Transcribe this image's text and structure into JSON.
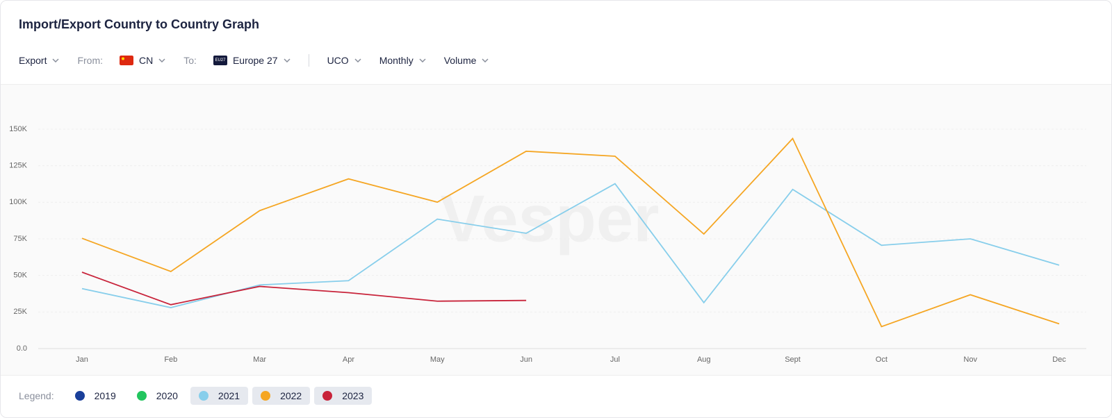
{
  "header": {
    "title": "Import/Export Country to Country Graph"
  },
  "filters": {
    "direction": "Export",
    "from_label": "From:",
    "from": "CN",
    "to_label": "To:",
    "to_badge": "EU27",
    "to": "Europe 27",
    "product": "UCO",
    "period": "Monthly",
    "measure": "Volume"
  },
  "watermark": "Vesper",
  "legend_label": "Legend:",
  "chart_data": {
    "type": "line",
    "categories": [
      "Jan",
      "Feb",
      "Mar",
      "Apr",
      "May",
      "Jun",
      "Jul",
      "Aug",
      "Sept",
      "Oct",
      "Nov",
      "Dec"
    ],
    "series": [
      {
        "name": "2019",
        "color": "#1a3f9a",
        "selected": false,
        "values": [
          null,
          null,
          null,
          null,
          null,
          null,
          null,
          null,
          null,
          null,
          null,
          null
        ]
      },
      {
        "name": "2020",
        "color": "#22c55e",
        "selected": false,
        "values": [
          null,
          null,
          null,
          null,
          null,
          null,
          null,
          null,
          null,
          null,
          null,
          null
        ]
      },
      {
        "name": "2021",
        "color": "#87ceeb",
        "selected": true,
        "values": [
          41000,
          28000,
          43500,
          46400,
          88500,
          78800,
          112700,
          31400,
          108800,
          70600,
          75000,
          57000
        ]
      },
      {
        "name": "2022",
        "color": "#f5a623",
        "selected": true,
        "values": [
          75400,
          52700,
          94300,
          116000,
          100100,
          134900,
          131500,
          78300,
          143600,
          15000,
          36800,
          16900
        ]
      },
      {
        "name": "2023",
        "color": "#c8233a",
        "selected": true,
        "values": [
          52200,
          30000,
          42500,
          38200,
          32400,
          32900,
          null,
          null,
          null,
          null,
          null,
          null
        ]
      }
    ],
    "ylim": [
      0,
      150000
    ],
    "yticks": [
      {
        "value": 0,
        "label": "0.0"
      },
      {
        "value": 25000,
        "label": "25K"
      },
      {
        "value": 50000,
        "label": "50K"
      },
      {
        "value": 75000,
        "label": "75K"
      },
      {
        "value": 100000,
        "label": "100K"
      },
      {
        "value": 125000,
        "label": "125K"
      },
      {
        "value": 150000,
        "label": "150K"
      }
    ],
    "grid": true
  }
}
